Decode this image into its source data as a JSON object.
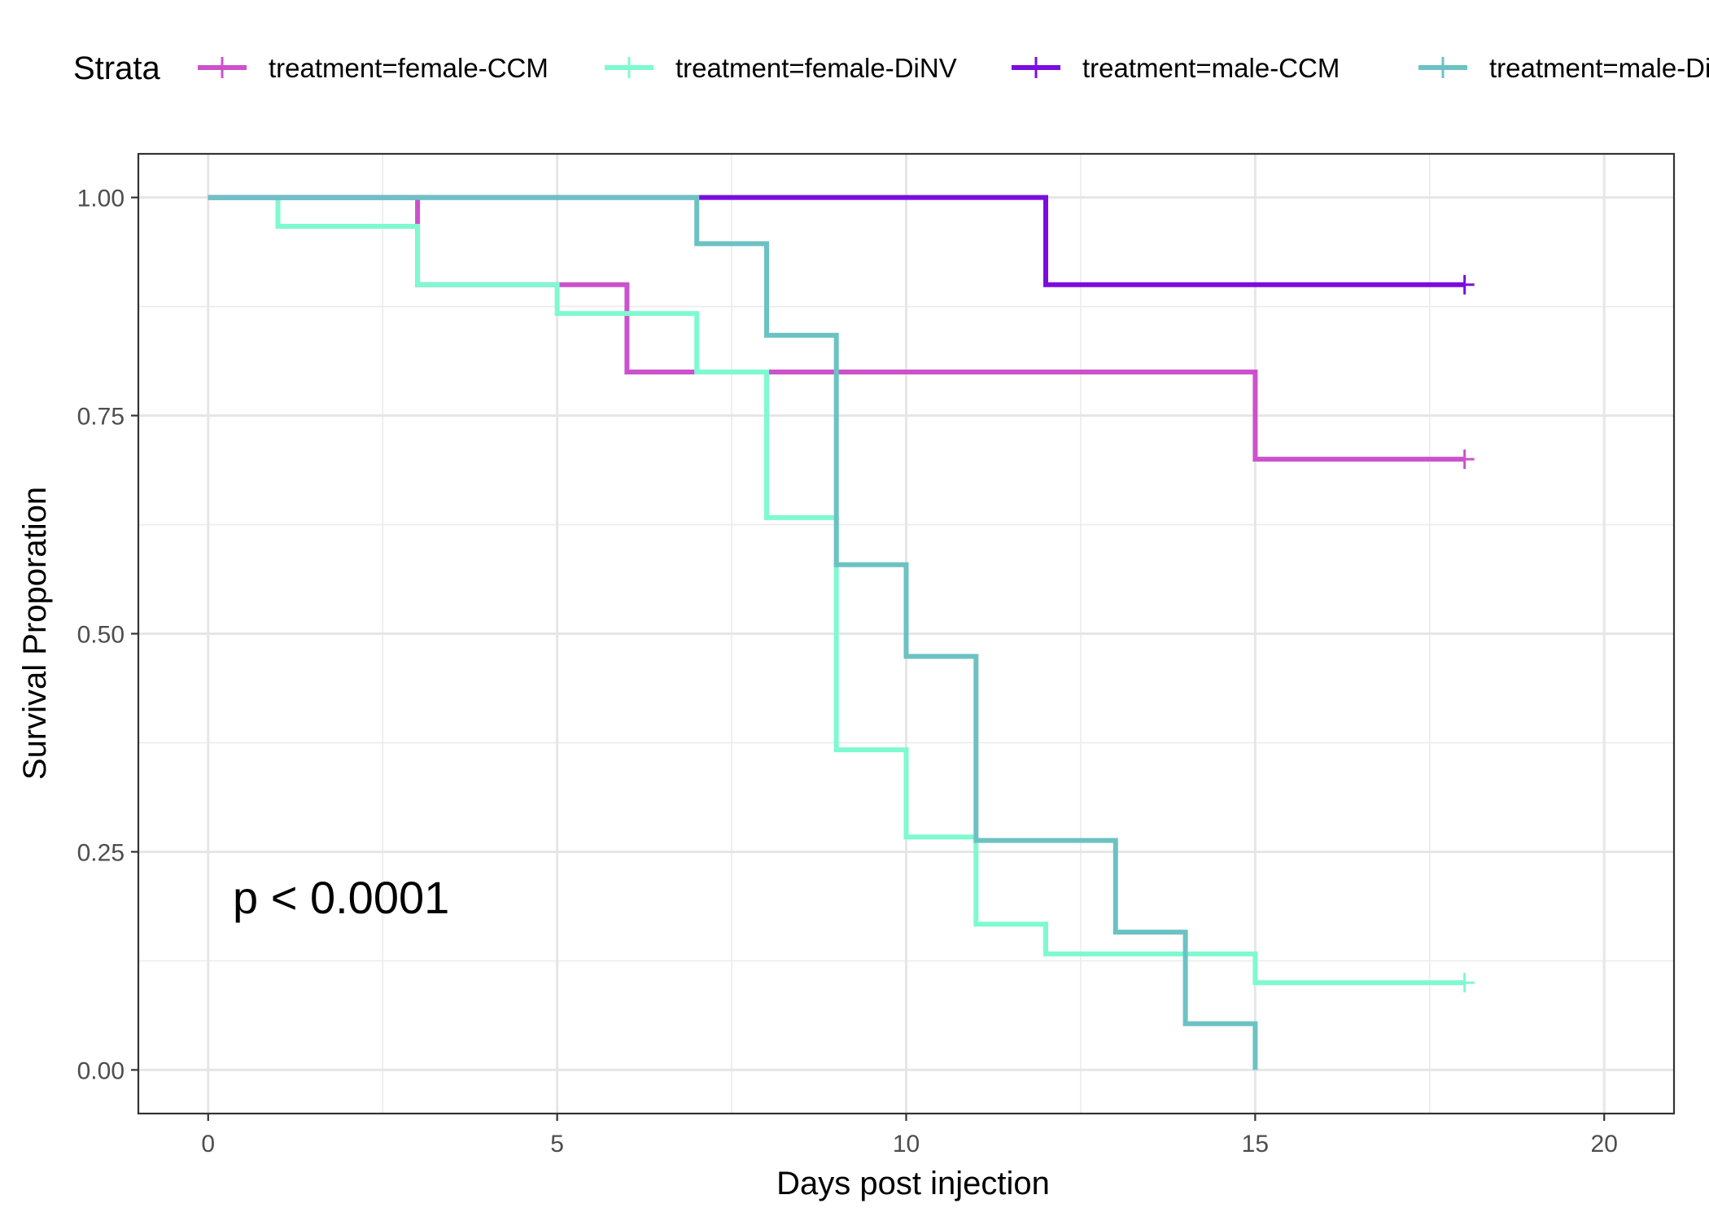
{
  "chart_data": {
    "type": "line",
    "step": true,
    "xlabel": "Days post injection",
    "ylabel": "Survival Proporation",
    "xlim": [
      -1,
      21
    ],
    "ylim": [
      -0.05,
      1.05
    ],
    "x_ticks": [
      0,
      5,
      10,
      15,
      20
    ],
    "y_ticks": [
      0.0,
      0.25,
      0.5,
      0.75,
      1.0
    ],
    "x_tick_labels": [
      "0",
      "5",
      "10",
      "15",
      "20"
    ],
    "y_tick_labels": [
      "0.00",
      "0.25",
      "0.50",
      "0.75",
      "1.00"
    ],
    "grid": true,
    "legend": {
      "title": "Strata",
      "placement": "top",
      "entries": [
        "treatment=female-CCM",
        "treatment=female-DiNV",
        "treatment=male-CCM",
        "treatment=male-Di"
      ]
    },
    "annotation": "p < 0.0001",
    "series": [
      {
        "name": "treatment=female-CCM",
        "color": "#cc52cc",
        "points": [
          [
            0,
            1.0
          ],
          [
            3,
            1.0
          ],
          [
            3,
            0.9
          ],
          [
            6,
            0.9
          ],
          [
            6,
            0.8
          ],
          [
            15,
            0.8
          ],
          [
            15,
            0.7
          ],
          [
            18,
            0.7
          ]
        ],
        "censor": [
          [
            18,
            0.7
          ]
        ]
      },
      {
        "name": "treatment=female-DiNV",
        "color": "#7ff9d0",
        "points": [
          [
            0,
            1.0
          ],
          [
            1,
            1.0
          ],
          [
            1,
            0.967
          ],
          [
            3,
            0.967
          ],
          [
            3,
            0.9
          ],
          [
            5,
            0.9
          ],
          [
            5,
            0.867
          ],
          [
            7,
            0.867
          ],
          [
            7,
            0.8
          ],
          [
            8,
            0.8
          ],
          [
            8,
            0.633
          ],
          [
            9,
            0.633
          ],
          [
            9,
            0.367
          ],
          [
            10,
            0.367
          ],
          [
            10,
            0.267
          ],
          [
            11,
            0.267
          ],
          [
            11,
            0.167
          ],
          [
            12,
            0.167
          ],
          [
            12,
            0.133
          ],
          [
            15,
            0.133
          ],
          [
            15,
            0.1
          ],
          [
            18,
            0.1
          ]
        ],
        "censor": [
          [
            18,
            0.1
          ]
        ]
      },
      {
        "name": "treatment=male-CCM",
        "color": "#7a0de0",
        "points": [
          [
            0,
            1.0
          ],
          [
            12,
            1.0
          ],
          [
            12,
            0.9
          ],
          [
            18,
            0.9
          ]
        ],
        "censor": [
          [
            18,
            0.9
          ]
        ]
      },
      {
        "name": "treatment=male-Di",
        "color": "#6cc2c3",
        "points": [
          [
            0,
            1.0
          ],
          [
            7,
            1.0
          ],
          [
            7,
            0.947
          ],
          [
            8,
            0.947
          ],
          [
            8,
            0.842
          ],
          [
            9,
            0.842
          ],
          [
            9,
            0.579
          ],
          [
            10,
            0.579
          ],
          [
            10,
            0.474
          ],
          [
            11,
            0.474
          ],
          [
            11,
            0.263
          ],
          [
            13,
            0.263
          ],
          [
            13,
            0.158
          ],
          [
            14,
            0.158
          ],
          [
            14,
            0.053
          ],
          [
            15,
            0.053
          ],
          [
            15,
            0.0
          ]
        ],
        "censor": []
      }
    ]
  }
}
